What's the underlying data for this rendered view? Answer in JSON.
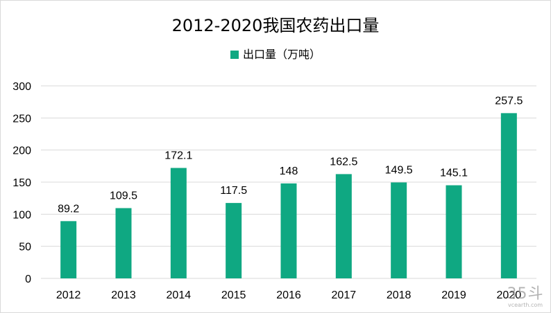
{
  "chart_data": {
    "type": "bar",
    "title": "2012-2020我国农药出口量",
    "categories": [
      "2012",
      "2013",
      "2014",
      "2015",
      "2016",
      "2017",
      "2018",
      "2019",
      "2020"
    ],
    "series": [
      {
        "name": "出口量（万吨）",
        "values": [
          89.2,
          109.5,
          172.1,
          117.5,
          148,
          162.5,
          149.5,
          145.1,
          257.5
        ],
        "labels": [
          "89.2",
          "109.5",
          "172.1",
          "117.5",
          "148",
          "162.5",
          "149.5",
          "145.1",
          "257.5"
        ],
        "color": "#0fa882"
      }
    ],
    "ylim": [
      0,
      300
    ],
    "yticks": [
      "0",
      "50",
      "100",
      "150",
      "200",
      "250",
      "300"
    ],
    "grid": true,
    "legend_position": "top"
  },
  "colors": {
    "bar": "#0fa882",
    "gridline": "#d9d9d9"
  },
  "watermark": {
    "brand": "35斗",
    "url": "vcearth.com"
  }
}
